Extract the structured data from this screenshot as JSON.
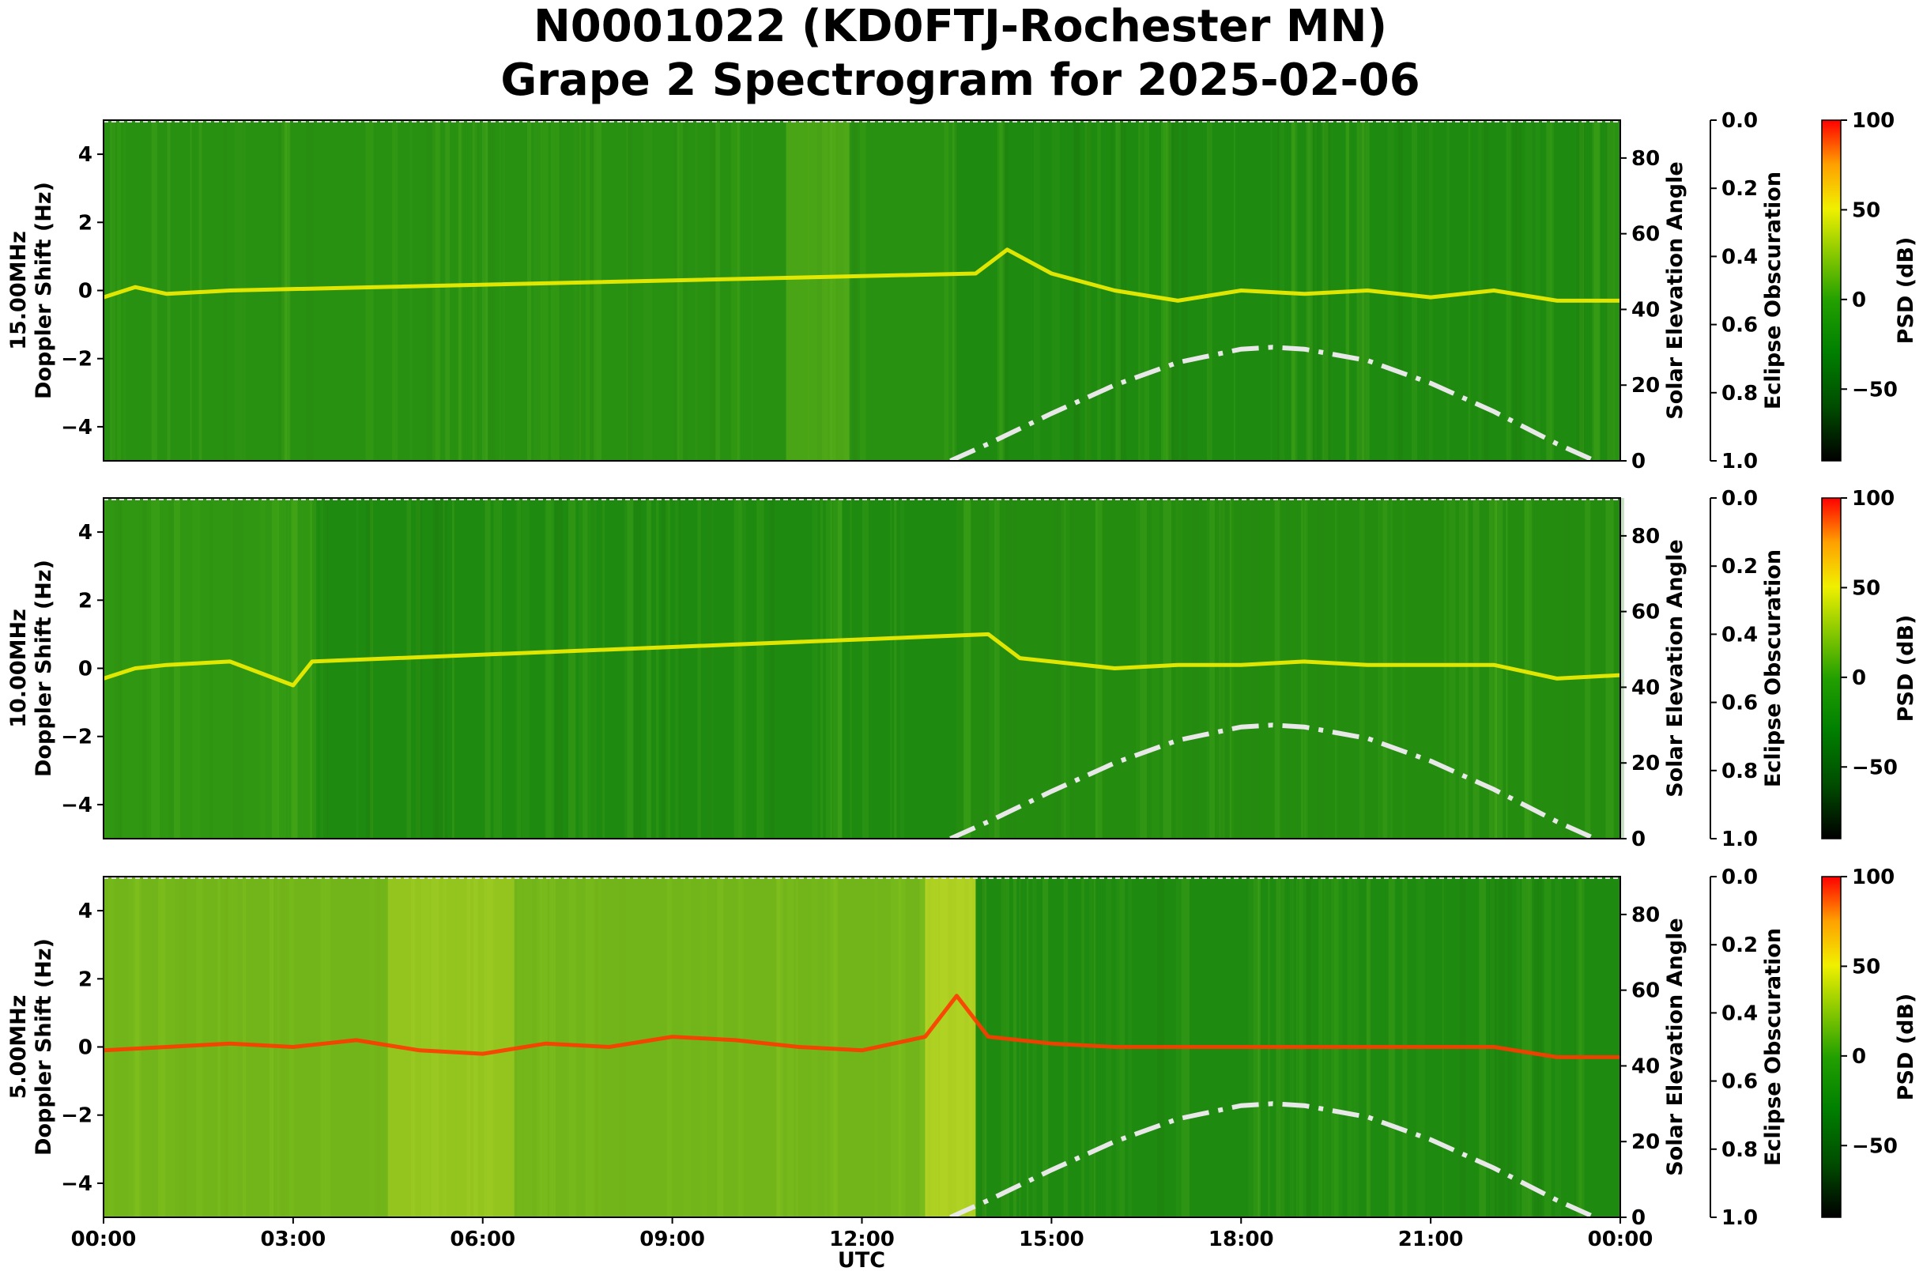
{
  "chart_data": {
    "type": "heatmap",
    "title_line1": "N0001022 (KD0FTJ-Rochester MN)",
    "title_line2": "Grape 2 Spectrogram for 2025-02-06",
    "xlabel": "UTC",
    "x_ticks": [
      "00:00",
      "03:00",
      "06:00",
      "09:00",
      "12:00",
      "15:00",
      "18:00",
      "21:00",
      "00:00"
    ],
    "xlim_hours": [
      0,
      24
    ],
    "ylim": [
      -5,
      5
    ],
    "y_ticks": [
      -4,
      -2,
      0,
      2,
      4
    ],
    "right_axis": {
      "label": "Solar Elevation Angle",
      "ylim": [
        0,
        90
      ],
      "ticks": [
        0,
        20,
        40,
        60,
        80
      ]
    },
    "eclipse_axis": {
      "label": "Eclipse Obscuration",
      "ylim": [
        1.0,
        0.0
      ],
      "ticks": [
        "0.0",
        "0.2",
        "0.4",
        "0.6",
        "0.8",
        "1.0"
      ],
      "tick_values": [
        0.0,
        0.2,
        0.4,
        0.6,
        0.8,
        1.0
      ]
    },
    "colorbar": {
      "label": "PSD (dB)",
      "range": [
        -90,
        100
      ],
      "ticks": [
        "100",
        "50",
        "0",
        "−50"
      ],
      "tick_values": [
        100,
        50,
        0,
        -50
      ],
      "colors": [
        "#000000",
        "#006400",
        "#00a000",
        "#7fd000",
        "#ffff00",
        "#ff0000"
      ]
    },
    "solar_elevation_curve": {
      "style": "dash-dot",
      "color": "#e8e8e8",
      "points_hours": [
        13.4,
        14,
        15,
        16,
        17,
        18,
        18.5,
        19,
        20,
        21,
        22,
        23,
        24
      ],
      "points_deg": [
        0,
        4.5,
        12.5,
        20,
        26,
        29.5,
        30,
        29.5,
        26.5,
        20.5,
        13,
        4.5,
        -3
      ]
    },
    "panels": [
      {
        "ylabel_line1": "15.00MHz",
        "ylabel_line2": "Doppler Shift (Hz)",
        "dominant_trace_hours": [
          0,
          0.5,
          1,
          2,
          13.8,
          14.3,
          15,
          16,
          17,
          18,
          19,
          20,
          21,
          22,
          23,
          24
        ],
        "dominant_trace_hz": [
          -0.2,
          0.1,
          -0.1,
          0,
          0.5,
          1.2,
          0.5,
          0,
          -0.3,
          0,
          -0.1,
          0,
          -0.2,
          0,
          -0.3,
          -0.3
        ]
      },
      {
        "ylabel_line1": "10.00MHz",
        "ylabel_line2": "Doppler Shift (Hz)",
        "dominant_trace_hours": [
          0,
          0.5,
          1,
          2,
          3,
          3.3,
          14,
          14.5,
          15,
          16,
          17,
          18,
          19,
          20,
          21,
          22,
          23,
          24
        ],
        "dominant_trace_hz": [
          -0.3,
          0,
          0.1,
          0.2,
          -0.5,
          0.2,
          1.0,
          0.3,
          0.2,
          0,
          0.1,
          0.1,
          0.2,
          0.1,
          0.1,
          0.1,
          -0.3,
          -0.2
        ]
      },
      {
        "ylabel_line1": "5.00MHz",
        "ylabel_line2": "Doppler Shift (Hz)",
        "dominant_trace_hours": [
          0,
          1,
          2,
          3,
          4,
          5,
          6,
          7,
          8,
          9,
          10,
          11,
          12,
          13,
          13.5,
          14,
          15,
          16,
          17,
          18,
          19,
          20,
          21,
          22,
          23,
          24
        ],
        "dominant_trace_hz": [
          -0.1,
          0,
          0.1,
          0,
          0.2,
          -0.1,
          -0.2,
          0.1,
          0,
          0.3,
          0.2,
          0,
          -0.1,
          0.3,
          1.5,
          0.3,
          0.1,
          0,
          0,
          0,
          0,
          0,
          0,
          0,
          -0.3,
          -0.3
        ]
      }
    ]
  }
}
